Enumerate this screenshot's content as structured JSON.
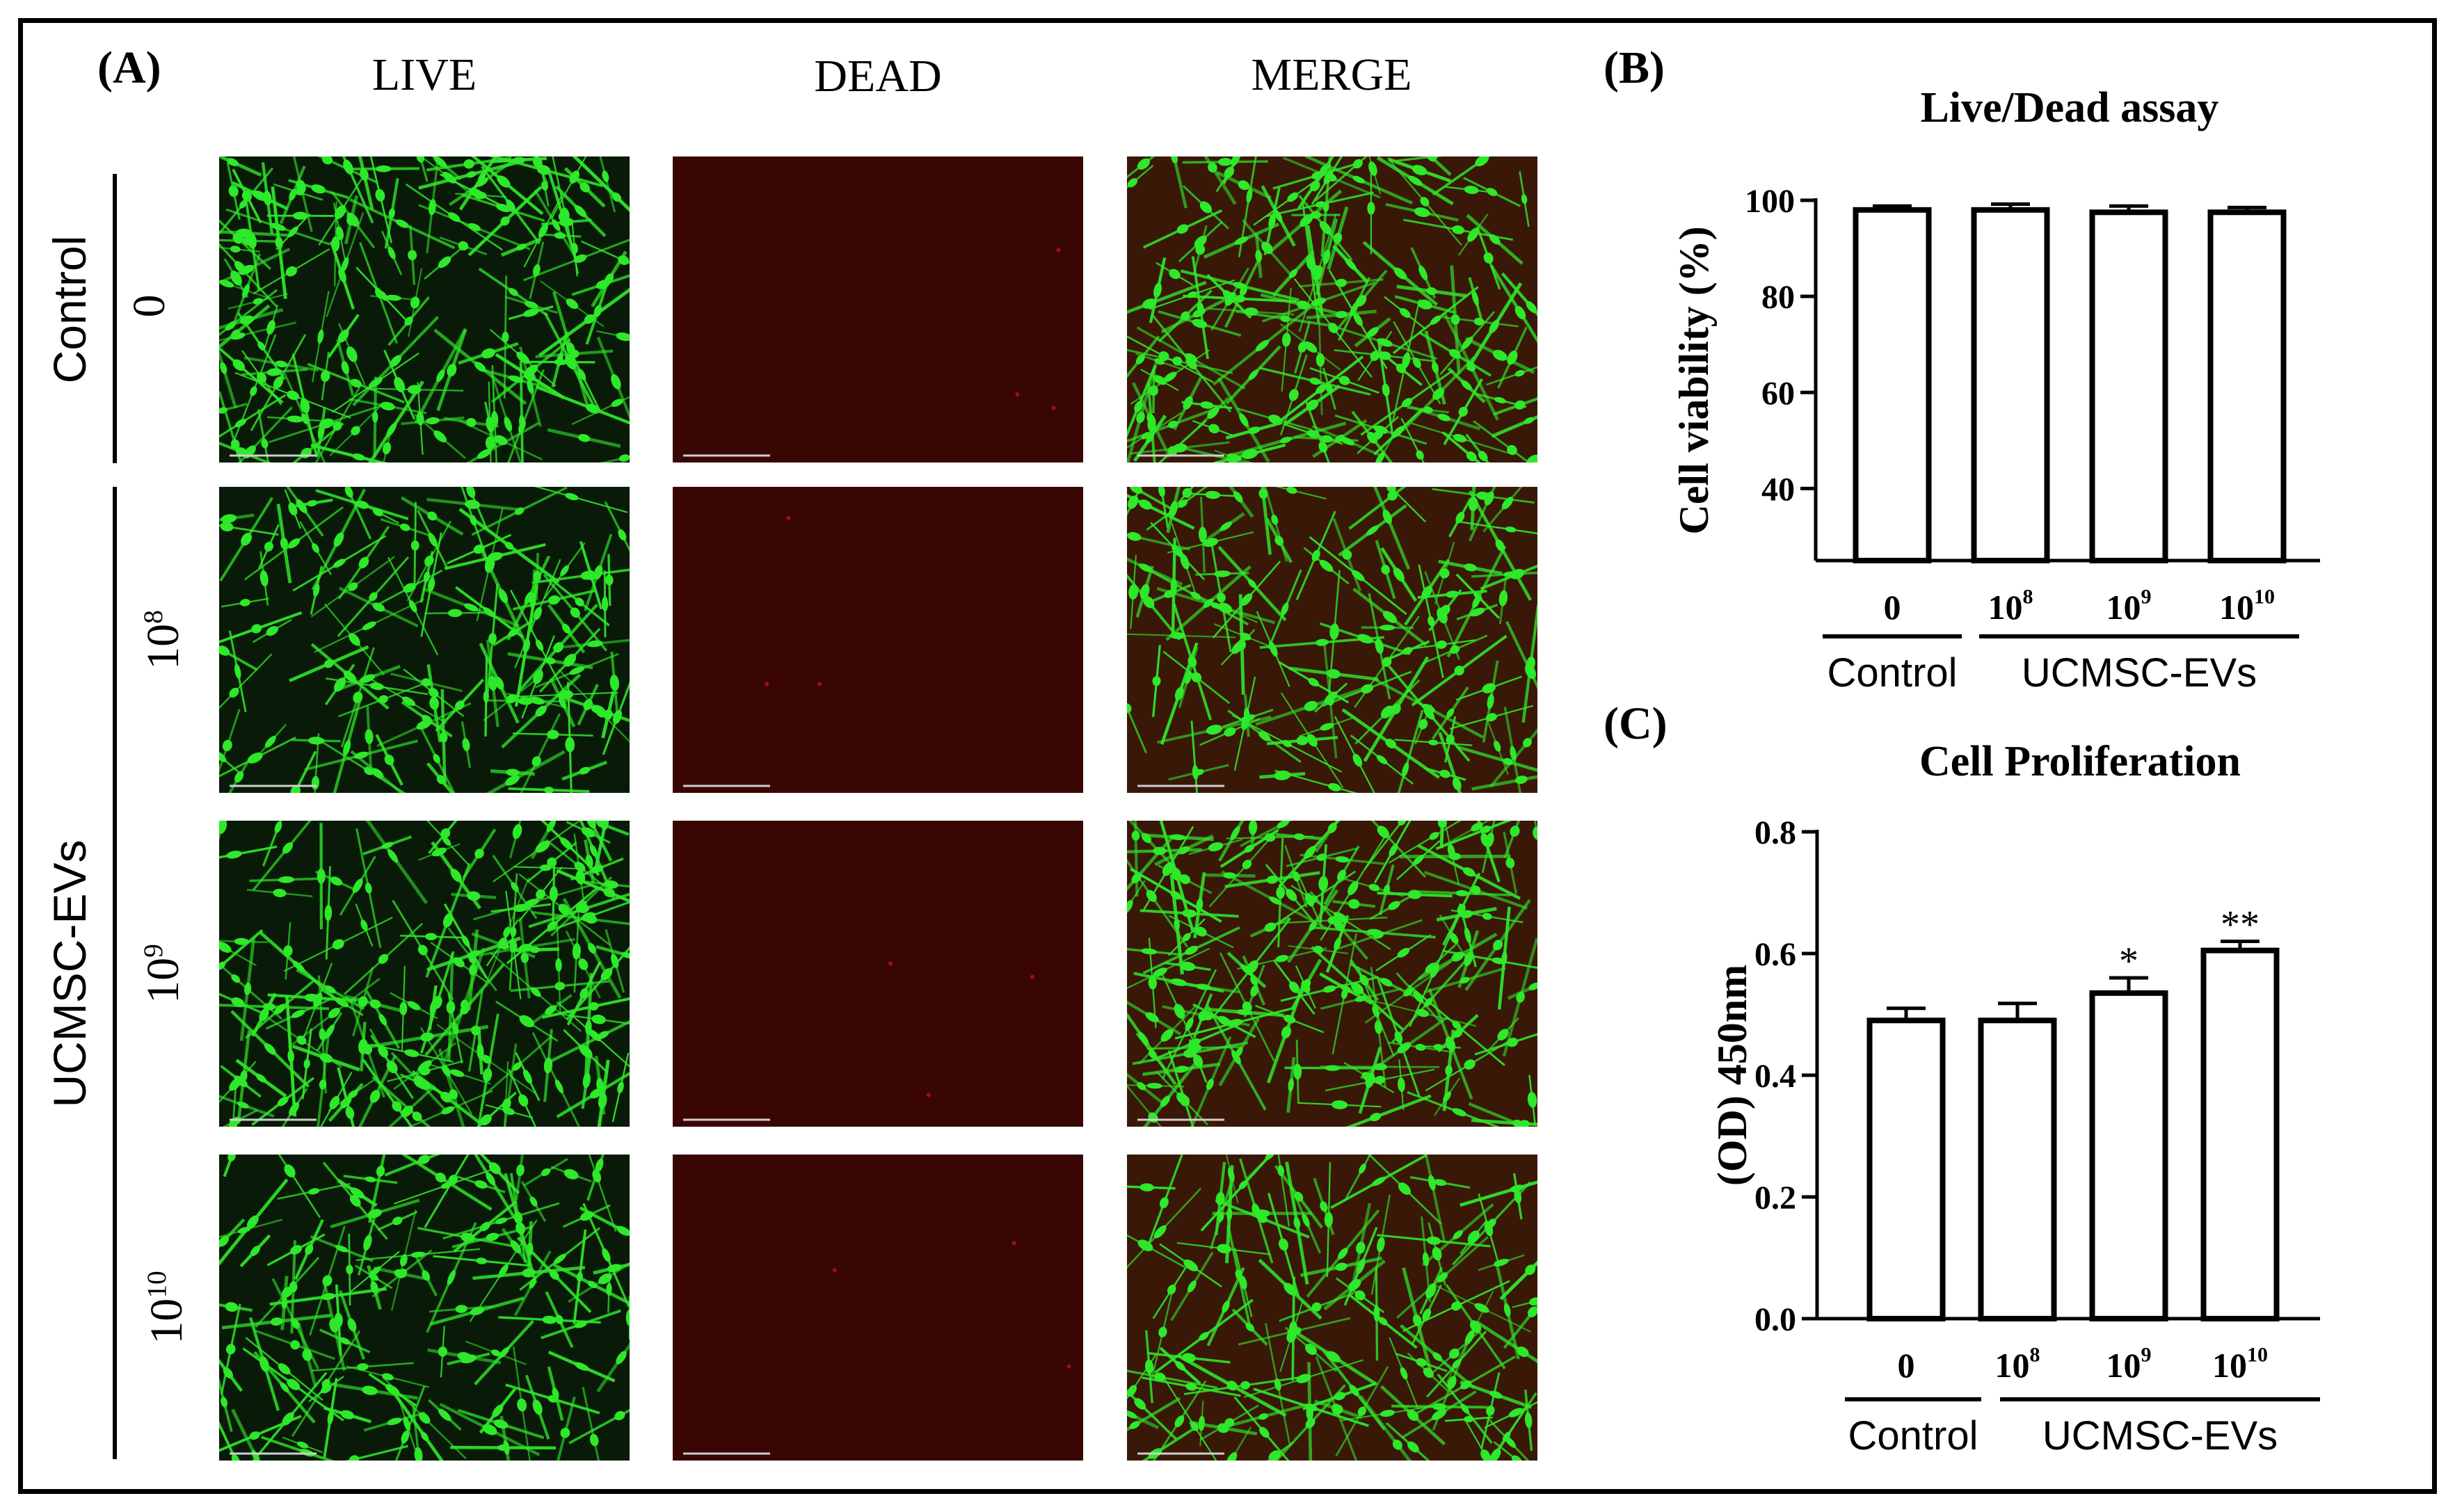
{
  "panel_a": {
    "label": "(A)",
    "columns": [
      "LIVE",
      "DEAD",
      "MERGE"
    ],
    "groups": [
      {
        "name": "Control",
        "rows": [
          {
            "base": "0",
            "exp": ""
          }
        ]
      },
      {
        "name": "UCMSC-EVs",
        "rows": [
          {
            "base": "10",
            "exp": "8"
          },
          {
            "base": "10",
            "exp": "9"
          },
          {
            "base": "10",
            "exp": "10"
          }
        ]
      }
    ],
    "image_colors": {
      "live_bg": "#0a1a08",
      "live_cell": "#2ee82a",
      "dead_bg": "#3a0604",
      "merge_bg": "#3a1808"
    }
  },
  "panel_b": {
    "label": "(B)",
    "chart_data": {
      "type": "bar",
      "title": "Live/Dead assay",
      "ylabel": "Cell viability (%)",
      "ylim": [
        25,
        100
      ],
      "yticks": [
        "40",
        "60",
        "80",
        "100"
      ],
      "categories": [
        {
          "base": "0",
          "exp": ""
        },
        {
          "base": "10",
          "exp": "8"
        },
        {
          "base": "10",
          "exp": "9"
        },
        {
          "base": "10",
          "exp": "10"
        }
      ],
      "values": [
        98,
        98,
        97.5,
        97.5
      ],
      "errors": [
        0.8,
        1.2,
        1.3,
        1.0
      ],
      "group_labels": [
        "Control",
        "UCMSC-EVs"
      ]
    }
  },
  "panel_c": {
    "label": "(C)",
    "chart_data": {
      "type": "bar",
      "title": "Cell Proliferation",
      "ylabel": "(OD) 450nm",
      "ylim": [
        0.0,
        0.8
      ],
      "yticks": [
        "0.0",
        "0.2",
        "0.4",
        "0.6",
        "0.8"
      ],
      "categories": [
        {
          "base": "0",
          "exp": ""
        },
        {
          "base": "10",
          "exp": "8"
        },
        {
          "base": "10",
          "exp": "9"
        },
        {
          "base": "10",
          "exp": "10"
        }
      ],
      "values": [
        0.49,
        0.49,
        0.535,
        0.605
      ],
      "errors": [
        0.02,
        0.028,
        0.025,
        0.015
      ],
      "significance": [
        "",
        "",
        "*",
        "**"
      ],
      "group_labels": [
        "Control",
        "UCMSC-EVs"
      ]
    }
  }
}
